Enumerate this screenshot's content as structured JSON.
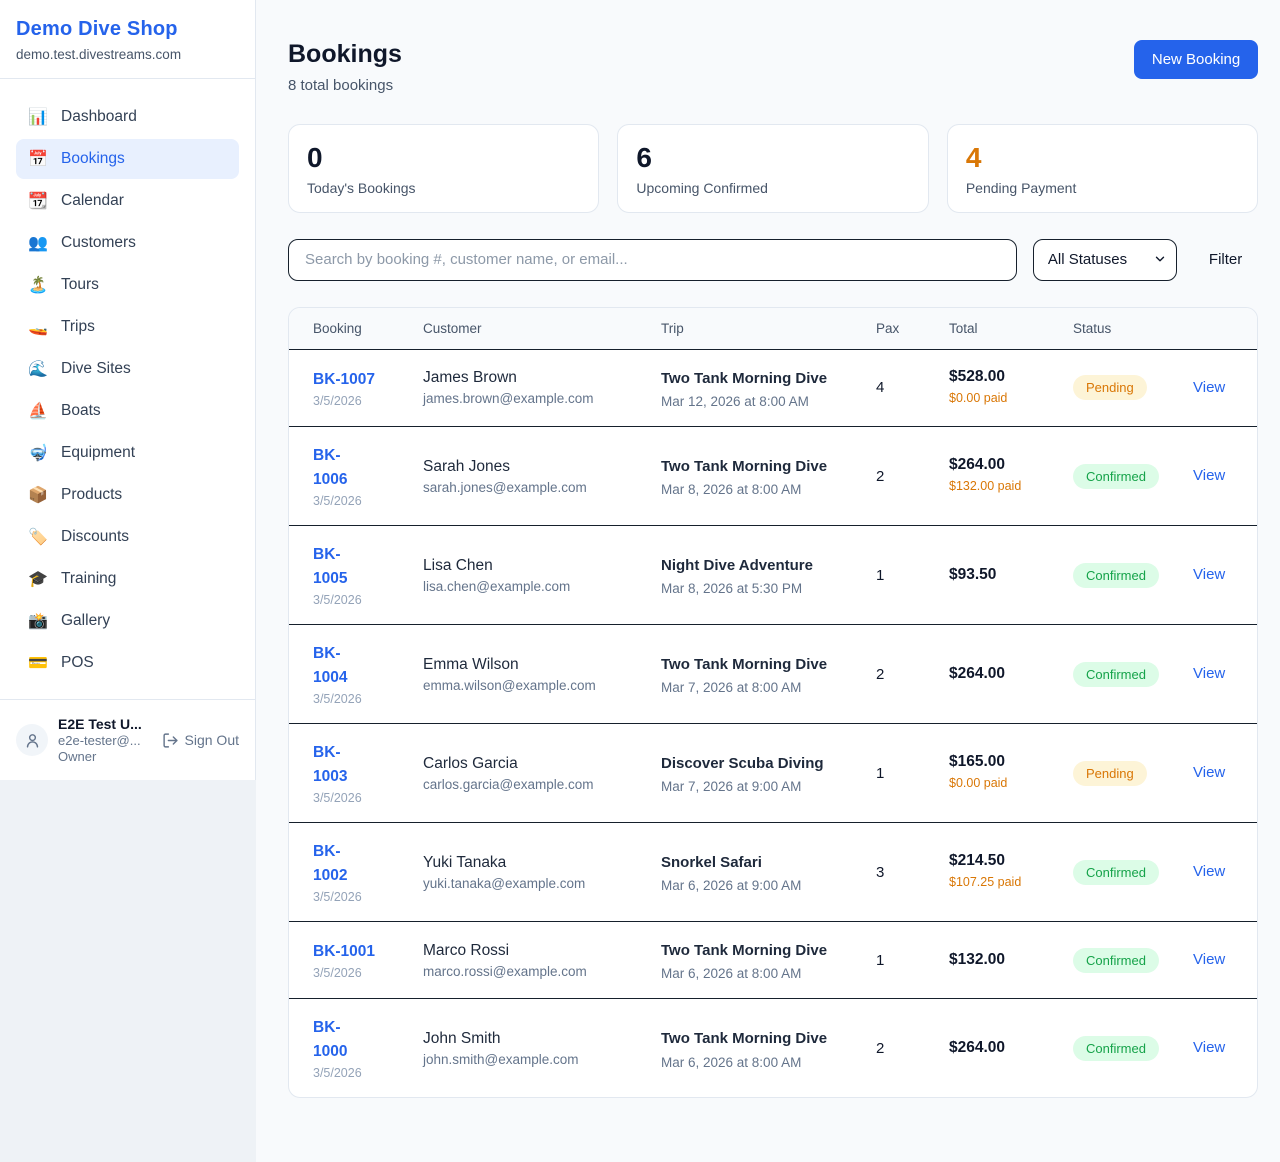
{
  "colors": {
    "accent": "#2563eb",
    "pending_text": "#d97706",
    "pending_bg": "#fdf4d7",
    "confirmed_text": "#16a34a",
    "confirmed_bg": "#dcfce7",
    "stat_pending": "#d97706"
  },
  "sidebar": {
    "title": "Demo Dive Shop",
    "domain": "demo.test.divestreams.com",
    "items": [
      {
        "icon": "📊",
        "label": "Dashboard",
        "active": false
      },
      {
        "icon": "📅",
        "label": "Bookings",
        "active": true
      },
      {
        "icon": "📆",
        "label": "Calendar",
        "active": false
      },
      {
        "icon": "👥",
        "label": "Customers",
        "active": false
      },
      {
        "icon": "🏝️",
        "label": "Tours",
        "active": false
      },
      {
        "icon": "🚤",
        "label": "Trips",
        "active": false
      },
      {
        "icon": "🌊",
        "label": "Dive Sites",
        "active": false
      },
      {
        "icon": "⛵",
        "label": "Boats",
        "active": false
      },
      {
        "icon": "🤿",
        "label": "Equipment",
        "active": false
      },
      {
        "icon": "📦",
        "label": "Products",
        "active": false
      },
      {
        "icon": "🏷️",
        "label": "Discounts",
        "active": false
      },
      {
        "icon": "🎓",
        "label": "Training",
        "active": false
      },
      {
        "icon": "📸",
        "label": "Gallery",
        "active": false
      },
      {
        "icon": "💳",
        "label": "POS",
        "active": false
      }
    ],
    "user": {
      "name": "E2E Test U...",
      "email": "e2e-tester@...",
      "role": "Owner",
      "signout_label": "Sign Out"
    }
  },
  "header": {
    "title": "Bookings",
    "subtitle": "8 total bookings",
    "new_booking_label": "New Booking"
  },
  "stats": [
    {
      "value": "0",
      "label": "Today's Bookings",
      "highlight": false
    },
    {
      "value": "6",
      "label": "Upcoming Confirmed",
      "highlight": false
    },
    {
      "value": "4",
      "label": "Pending Payment",
      "highlight": true
    }
  ],
  "controls": {
    "search_placeholder": "Search by booking #, customer name, or email...",
    "status_selected": "All Statuses",
    "filter_label": "Filter"
  },
  "table": {
    "columns": [
      "Booking",
      "Customer",
      "Trip",
      "Pax",
      "Total",
      "Status"
    ],
    "view_label": "View",
    "rows": [
      {
        "id": "BK-1007",
        "date": "3/5/2026",
        "customer": "James Brown",
        "email": "james.brown@example.com",
        "trip": "Two Tank Morning Dive",
        "trip_date": "Mar 12, 2026 at 8:00 AM",
        "pax": "4",
        "total": "$528.00",
        "paid": "$0.00 paid",
        "status": "Pending"
      },
      {
        "id": "BK-\n1006",
        "date": "3/5/2026",
        "customer": "Sarah Jones",
        "email": "sarah.jones@example.com",
        "trip": "Two Tank Morning Dive",
        "trip_date": "Mar 8, 2026 at 8:00 AM",
        "pax": "2",
        "total": "$264.00",
        "paid": "$132.00 paid",
        "status": "Confirmed"
      },
      {
        "id": "BK-\n1005",
        "date": "3/5/2026",
        "customer": "Lisa Chen",
        "email": "lisa.chen@example.com",
        "trip": "Night Dive Adventure",
        "trip_date": "Mar 8, 2026 at 5:30 PM",
        "pax": "1",
        "total": "$93.50",
        "paid": "",
        "status": "Confirmed"
      },
      {
        "id": "BK-\n1004",
        "date": "3/5/2026",
        "customer": "Emma Wilson",
        "email": "emma.wilson@example.com",
        "trip": "Two Tank Morning Dive",
        "trip_date": "Mar 7, 2026 at 8:00 AM",
        "pax": "2",
        "total": "$264.00",
        "paid": "",
        "status": "Confirmed"
      },
      {
        "id": "BK-\n1003",
        "date": "3/5/2026",
        "customer": "Carlos Garcia",
        "email": "carlos.garcia@example.com",
        "trip": "Discover Scuba Diving",
        "trip_date": "Mar 7, 2026 at 9:00 AM",
        "pax": "1",
        "total": "$165.00",
        "paid": "$0.00 paid",
        "status": "Pending"
      },
      {
        "id": "BK-\n1002",
        "date": "3/5/2026",
        "customer": "Yuki Tanaka",
        "email": "yuki.tanaka@example.com",
        "trip": "Snorkel Safari",
        "trip_date": "Mar 6, 2026 at 9:00 AM",
        "pax": "3",
        "total": "$214.50",
        "paid": "$107.25 paid",
        "status": "Confirmed"
      },
      {
        "id": "BK-1001",
        "date": "3/5/2026",
        "customer": "Marco Rossi",
        "email": "marco.rossi@example.com",
        "trip": "Two Tank Morning Dive",
        "trip_date": "Mar 6, 2026 at 8:00 AM",
        "pax": "1",
        "total": "$132.00",
        "paid": "",
        "status": "Confirmed"
      },
      {
        "id": "BK-\n1000",
        "date": "3/5/2026",
        "customer": "John Smith",
        "email": "john.smith@example.com",
        "trip": "Two Tank Morning Dive",
        "trip_date": "Mar 6, 2026 at 8:00 AM",
        "pax": "2",
        "total": "$264.00",
        "paid": "",
        "status": "Confirmed"
      }
    ]
  }
}
